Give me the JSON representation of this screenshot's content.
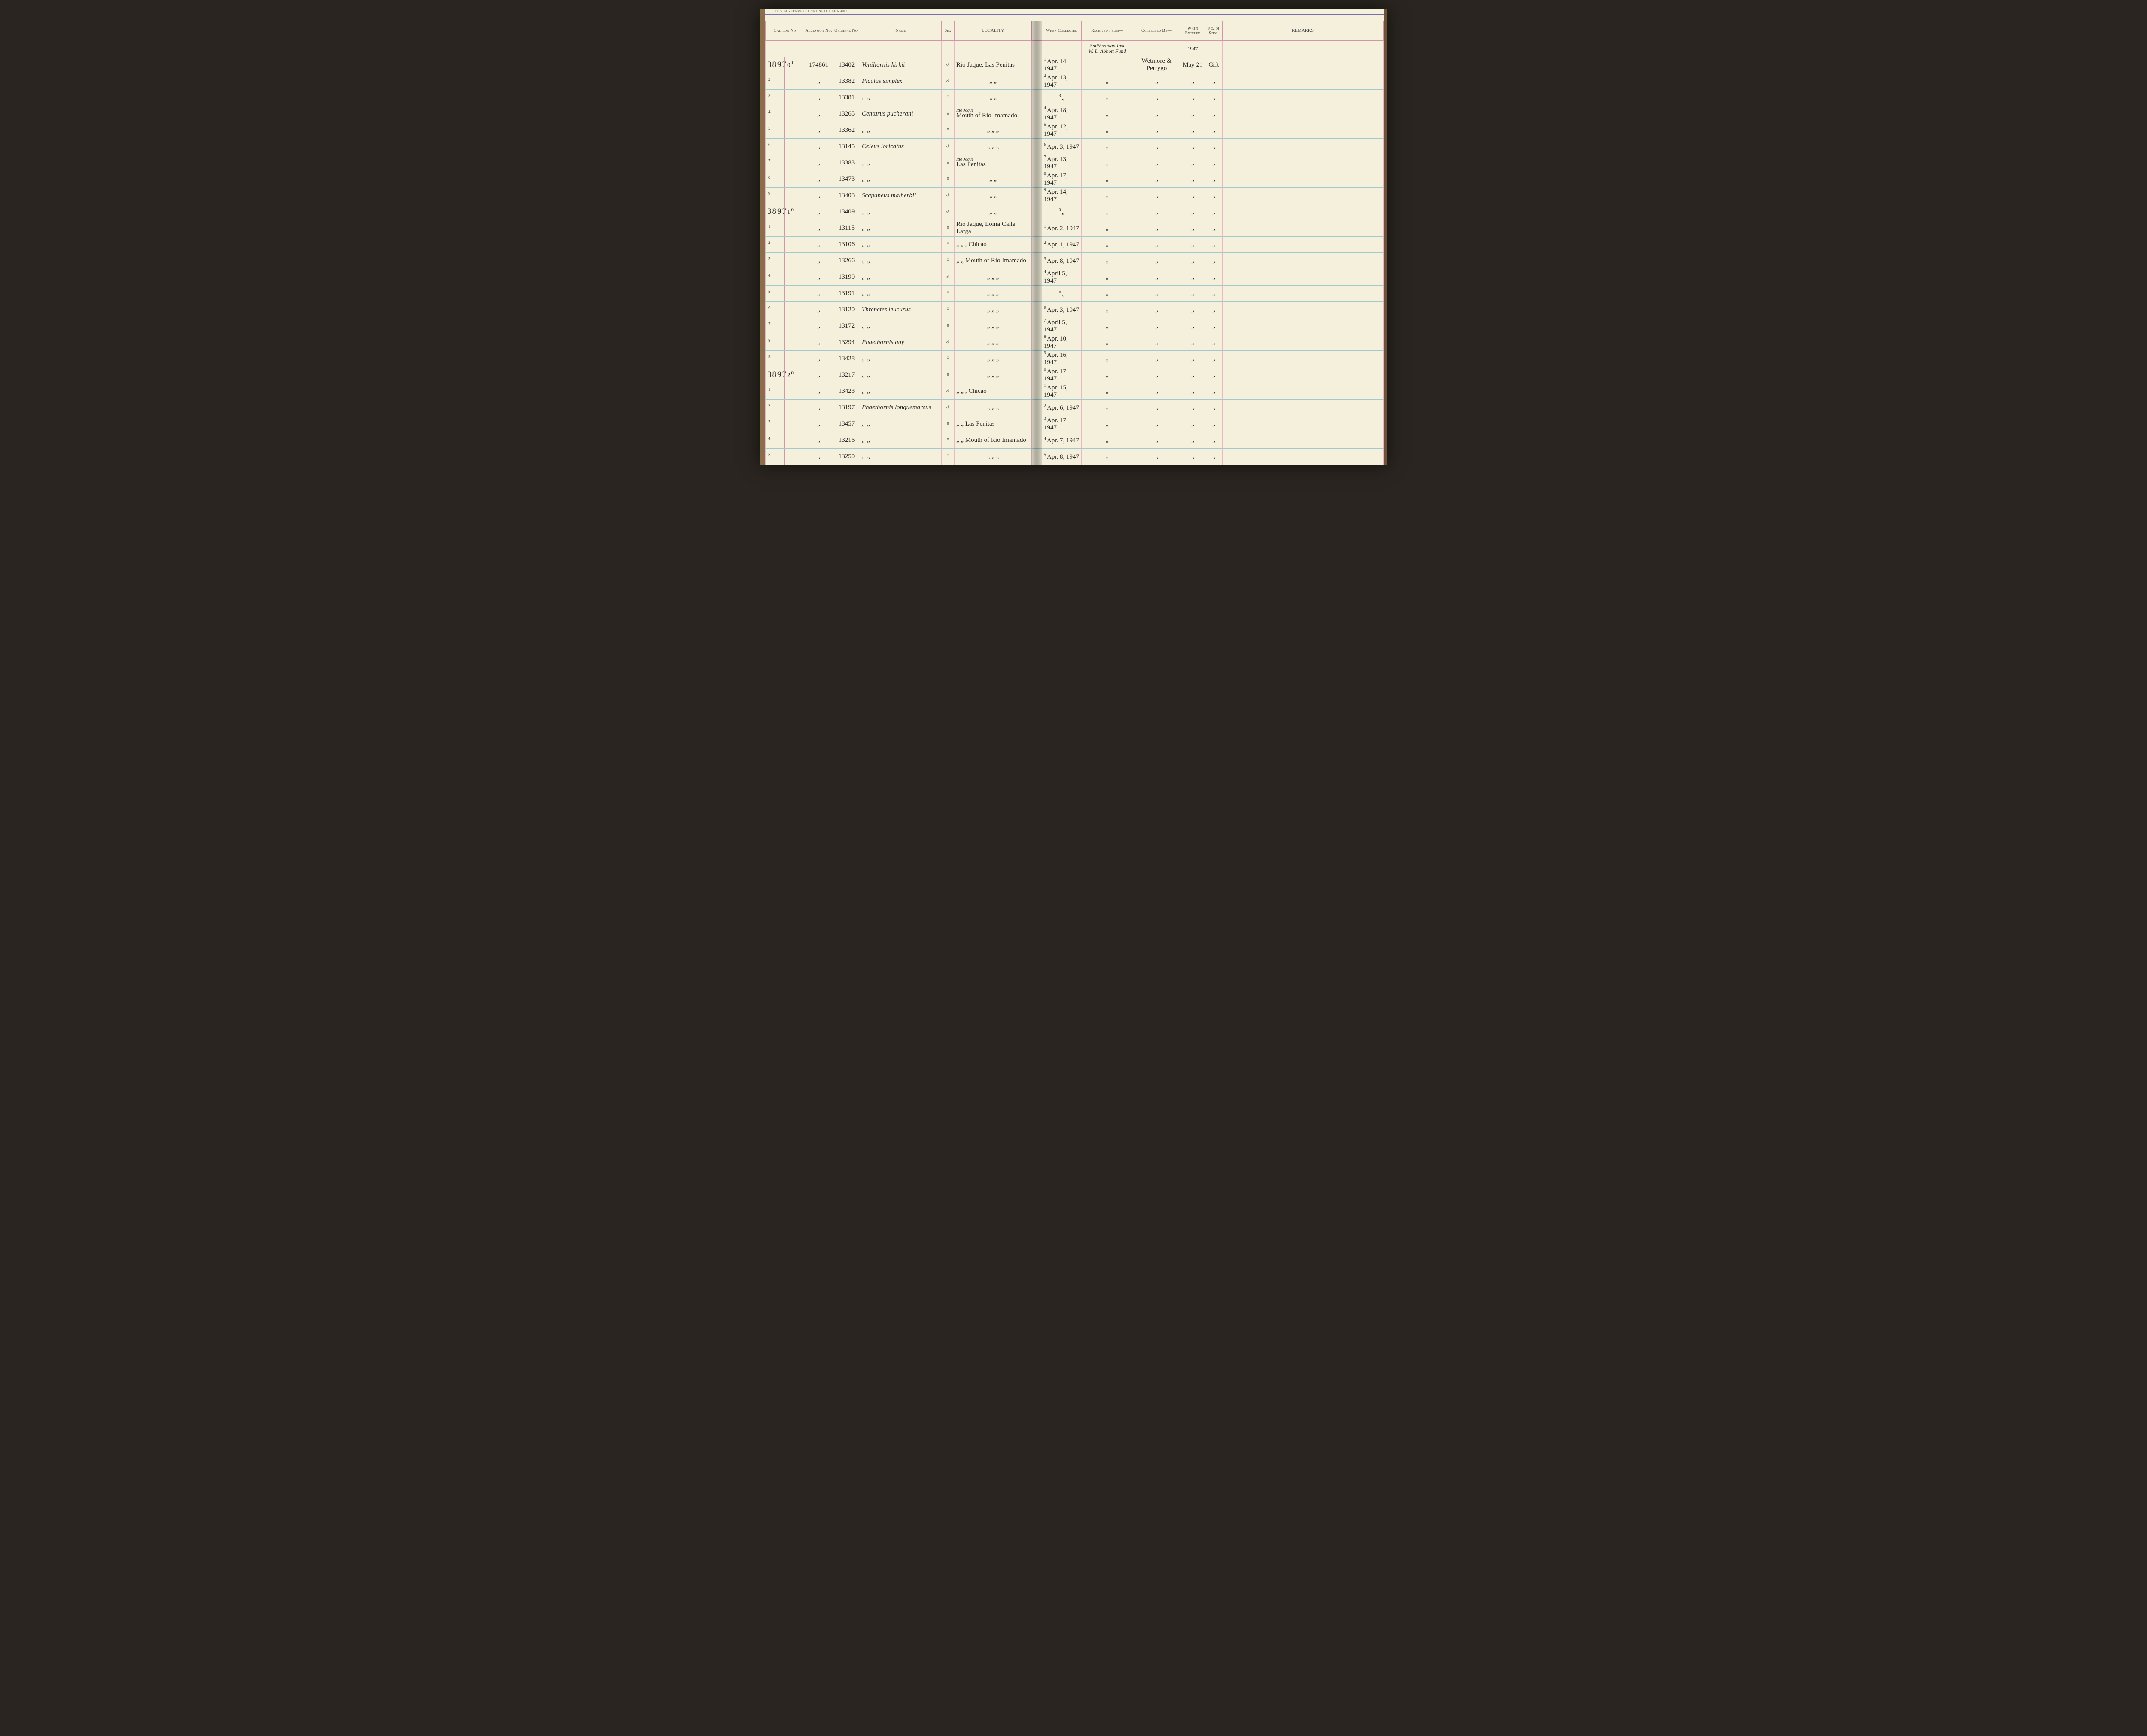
{
  "gov_print": "U. S. GOVERNMENT PRINTING OFFICE    664003",
  "columns": {
    "catalog": "Catalog\nNo",
    "accession": "Accession\nNo.",
    "original": "Original\nNo.",
    "name": "Name",
    "sex": "Sex",
    "locality": "LOCALITY",
    "when": "When\nCollected",
    "received": "Received From—",
    "collected": "Collected By—",
    "entered": "When\nEntered",
    "spec": "No.\nof\nSpec.",
    "remarks": "REMARKS"
  },
  "annotation": {
    "received_line1": "Smithsonian Inst",
    "received_line2": "W. L. Abbott Fund",
    "entered_year": "1947"
  },
  "rows": [
    {
      "catalog_big": "3897",
      "catalog_digit": "0",
      "catalog_sup": "1",
      "accession": "174861",
      "original": "13402",
      "name": "Veniliornis kirkii",
      "sex": "♂",
      "locality": "Rio Jaque, Las Penitas",
      "when_sup": "1",
      "when": "Apr. 14, 1947",
      "received": "",
      "collected": "Wetmore & Perrygo",
      "entered": "May 21",
      "spec": "Gift"
    },
    {
      "catalog_sup": "2",
      "accession": "„",
      "original": "13382",
      "name": "Piculus simplex",
      "sex": "♂",
      "locality": "„        „",
      "when_sup": "2",
      "when": "Apr. 13, 1947",
      "received": "„",
      "collected": "„",
      "entered": "„",
      "spec": "„"
    },
    {
      "catalog_sup": "3",
      "accession": "„",
      "original": "13381",
      "name": "„        „",
      "sex": "♀",
      "locality": "„        „",
      "when_sup": "3",
      "when": "„",
      "received": "„",
      "collected": "„",
      "entered": "„",
      "spec": "„"
    },
    {
      "catalog_sup": "4",
      "accession": "„",
      "original": "13265",
      "name": "Centurus pucherani",
      "sex": "♀",
      "locality_over": "Rio Jaque",
      "locality": "Mouth of Rio Imamado",
      "when_sup": "4",
      "when": "Apr. 18, 1947",
      "received": "„",
      "collected": "„",
      "entered": "„",
      "spec": "„"
    },
    {
      "catalog_sup": "5",
      "accession": "„",
      "original": "13362",
      "name": "„        „",
      "sex": "♀",
      "locality": "„     „     „",
      "when_sup": "5",
      "when": "Apr. 12, 1947",
      "received": "„",
      "collected": "„",
      "entered": "„",
      "spec": "„"
    },
    {
      "catalog_sup": "6",
      "accession": "„",
      "original": "13145",
      "name": "Celeus loricatus",
      "sex": "♂",
      "locality": "„     „     „",
      "when_sup": "6",
      "when": "Apr. 3, 1947",
      "received": "„",
      "collected": "„",
      "entered": "„",
      "spec": "„"
    },
    {
      "catalog_sup": "7",
      "accession": "„",
      "original": "13383",
      "name": "„        „",
      "sex": "♀",
      "locality_over": "Rio Jaque",
      "locality": "Las Penitas",
      "when_sup": "7",
      "when": "Apr. 13, 1947",
      "received": "„",
      "collected": "„",
      "entered": "„",
      "spec": "„"
    },
    {
      "catalog_sup": "8",
      "accession": "„",
      "original": "13473",
      "name": "„        „",
      "sex": "♀",
      "locality": "„        „",
      "when_sup": "8",
      "when": "Apr. 17, 1947",
      "received": "„",
      "collected": "„",
      "entered": "„",
      "spec": "„"
    },
    {
      "catalog_sup": "9",
      "accession": "„",
      "original": "13408",
      "name": "Scapaneus malherbii",
      "sex": "♂",
      "locality": "„        „",
      "when_sup": "9",
      "when": "Apr. 14, 1947",
      "received": "„",
      "collected": "„",
      "entered": "„",
      "spec": "„"
    },
    {
      "catalog_big": "3897",
      "catalog_digit": "1",
      "catalog_sup": "0",
      "accession": "„",
      "original": "13409",
      "name": "„        „",
      "sex": "♂",
      "locality": "„        „",
      "when_sup": "0",
      "when": "„",
      "received": "„",
      "collected": "„",
      "entered": "„",
      "spec": "„"
    },
    {
      "catalog_sup": "1",
      "accession": "„",
      "original": "13115",
      "name": "„        „",
      "sex": "♀",
      "locality": "Rio Jaque, Loma Calle Larga",
      "when_sup": "1",
      "when": "Apr. 2, 1947",
      "received": "„",
      "collected": "„",
      "entered": "„",
      "spec": "„"
    },
    {
      "catalog_sup": "2",
      "accession": "„",
      "original": "13106",
      "name": "„        „",
      "sex": "♀",
      "locality": "„   „ , Chicao",
      "when_sup": "2",
      "when": "Apr. 1, 1947",
      "received": "„",
      "collected": "„",
      "entered": "„",
      "spec": "„"
    },
    {
      "catalog_sup": "3",
      "accession": "„",
      "original": "13266",
      "name": "„        „",
      "sex": "♀",
      "locality": "„  „ Mouth of Rio Imamado",
      "when_sup": "3",
      "when": "Apr. 8, 1947",
      "received": "„",
      "collected": "„",
      "entered": "„",
      "spec": "„"
    },
    {
      "catalog_sup": "4",
      "accession": "„",
      "original": "13190",
      "name": "„        „",
      "sex": "♂",
      "locality": "„     „     „",
      "when_sup": "4",
      "when": "April 5, 1947",
      "received": "„",
      "collected": "„",
      "entered": "„",
      "spec": "„"
    },
    {
      "catalog_sup": "5",
      "accession": "„",
      "original": "13191",
      "name": "„        „",
      "sex": "♀",
      "locality": "„     „     „",
      "when_sup": "5",
      "when": "„",
      "received": "„",
      "collected": "„",
      "entered": "„",
      "spec": "„"
    },
    {
      "catalog_sup": "6",
      "accession": "„",
      "original": "13120",
      "name": "Threnetes leucurus",
      "sex": "♀",
      "locality": "„     „     „",
      "when_sup": "6",
      "when": "Apr. 3, 1947",
      "received": "„",
      "collected": "„",
      "entered": "„",
      "spec": "„"
    },
    {
      "catalog_sup": "7",
      "accession": "„",
      "original": "13172",
      "name": "„        „",
      "sex": "♀",
      "locality": "„     „     „",
      "when_sup": "7",
      "when": "April 5, 1947",
      "received": "„",
      "collected": "„",
      "entered": "„",
      "spec": "„"
    },
    {
      "catalog_sup": "8",
      "accession": "„",
      "original": "13294",
      "name": "Phaethornis guy",
      "sex": "♂",
      "locality": "„     „     „",
      "when_sup": "8",
      "when": "Apr. 10, 1947",
      "received": "„",
      "collected": "„",
      "entered": "„",
      "spec": "„"
    },
    {
      "catalog_sup": "9",
      "accession": "„",
      "original": "13428",
      "name": "„        „",
      "sex": "♀",
      "locality": "„     „     „",
      "when_sup": "9",
      "when": "Apr. 16, 1947",
      "received": "„",
      "collected": "„",
      "entered": "„",
      "spec": "„"
    },
    {
      "catalog_big": "3897",
      "catalog_digit": "2",
      "catalog_sup": "0",
      "accession": "„",
      "original": "13217",
      "name": "„        „",
      "sex": "♀",
      "locality": "„     „     „",
      "when_sup": "0",
      "when": "Apr. 17, 1947",
      "received": "„",
      "collected": "„",
      "entered": "„",
      "spec": "„"
    },
    {
      "catalog_sup": "1",
      "accession": "„",
      "original": "13423",
      "name": "„        „",
      "sex": "♂",
      "locality": "„   „ , Chicao",
      "when_sup": "1",
      "when": "Apr. 15, 1947",
      "received": "„",
      "collected": "„",
      "entered": "„",
      "spec": "„"
    },
    {
      "catalog_sup": "2",
      "accession": "„",
      "original": "13197",
      "name": "Phaethornis longuemareus",
      "sex": "♂",
      "locality": "„     „     „",
      "when_sup": "2",
      "when": "Apr. 6, 1947",
      "received": "„",
      "collected": "„",
      "entered": "„",
      "spec": "„"
    },
    {
      "catalog_sup": "3",
      "accession": "„",
      "original": "13457",
      "name": "„        „",
      "sex": "♀",
      "locality": "„   „  Las Penitas",
      "when_sup": "3",
      "when": "Apr. 17, 1947",
      "received": "„",
      "collected": "„",
      "entered": "„",
      "spec": "„"
    },
    {
      "catalog_sup": "4",
      "accession": "„",
      "original": "13216",
      "name": "„        „",
      "sex": "♀",
      "locality": "„  „ Mouth of Rio Imamado",
      "when_sup": "4",
      "when": "Apr. 7, 1947",
      "received": "„",
      "collected": "„",
      "entered": "„",
      "spec": "„"
    },
    {
      "catalog_sup": "5",
      "accession": "„",
      "original": "13250",
      "name": "„        „",
      "sex": "♀",
      "locality": "„     „     „",
      "when_sup": "5",
      "when": "Apr. 8, 1947",
      "received": "„",
      "collected": "„",
      "entered": "„",
      "spec": "„"
    }
  ]
}
